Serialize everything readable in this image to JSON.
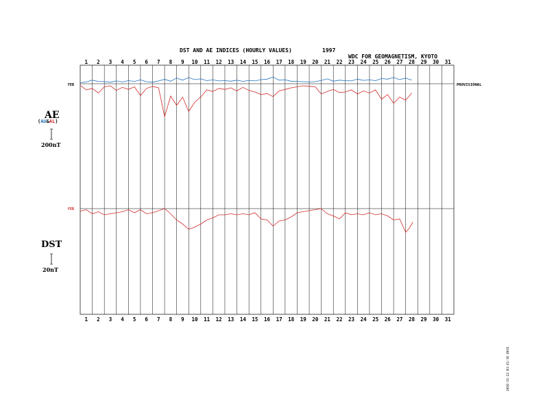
{
  "title": "DST AND AE INDICES (HOURLY VALUES)",
  "year": "1997",
  "institution": "WDC FOR GEOMAGNETISM, KYOTO",
  "status": "PROVISIONAL",
  "month_label": "FEB",
  "footer_stamp": "2010-11-22  03:41:36  0031",
  "colors": {
    "au": "#1f6fbf",
    "al": "#d42a2a",
    "dst": "#d42a2a",
    "grid": "#000000"
  },
  "ae_panel": {
    "label": "AE",
    "legend_open": "(",
    "legend_au": "AU",
    "legend_amp": "&",
    "legend_al": "AL",
    "legend_close": ")",
    "scale_label": "200nT"
  },
  "dst_panel": {
    "label": "DST",
    "scale_label": "20nT"
  },
  "chart_data": [
    {
      "type": "line",
      "name": "AE",
      "x_unit": "day of month",
      "x_ticks": [
        "1",
        "2",
        "3",
        "4",
        "5",
        "6",
        "7",
        "8",
        "9",
        "10",
        "11",
        "12",
        "13",
        "14",
        "15",
        "16",
        "17",
        "18",
        "19",
        "20",
        "21",
        "22",
        "23",
        "24",
        "25",
        "26",
        "27",
        "28",
        "29",
        "30",
        "31"
      ],
      "xlim": [
        1,
        32
      ],
      "y_unit": "nT",
      "scale_bar_nT": 200,
      "series": [
        {
          "name": "AU",
          "color": "#1f6fbf",
          "x": [
            1,
            1.5,
            2,
            2.5,
            3,
            3.5,
            4,
            4.5,
            5,
            5.5,
            6,
            6.5,
            7,
            7.5,
            8,
            8.5,
            9,
            9.5,
            10,
            10.5,
            11,
            11.5,
            12,
            12.5,
            13,
            13.5,
            14,
            14.5,
            15,
            15.5,
            16,
            16.5,
            17,
            17.5,
            18,
            18.5,
            19,
            19.5,
            20,
            20.5,
            21,
            21.5,
            22,
            22.5,
            23,
            23.5,
            24,
            24.5,
            25,
            25.5,
            26,
            26.5,
            27,
            27.5,
            28,
            28.5
          ],
          "values": [
            20,
            35,
            70,
            45,
            40,
            30,
            55,
            35,
            60,
            45,
            75,
            40,
            30,
            55,
            85,
            50,
            110,
            70,
            120,
            80,
            95,
            60,
            75,
            55,
            60,
            50,
            70,
            45,
            65,
            55,
            80,
            90,
            130,
            70,
            75,
            50,
            45,
            40,
            35,
            40,
            65,
            95,
            50,
            70,
            60,
            55,
            90,
            65,
            75,
            60,
            100,
            90,
            120,
            80,
            110,
            70
          ]
        },
        {
          "name": "AL",
          "color": "#d42a2a",
          "x": [
            1,
            1.5,
            2,
            2.5,
            3,
            3.5,
            4,
            4.5,
            5,
            5.5,
            6,
            6.5,
            7,
            7.5,
            8,
            8.5,
            9,
            9.5,
            10,
            10.5,
            11,
            11.5,
            12,
            12.5,
            13,
            13.5,
            14,
            14.5,
            15,
            15.5,
            16,
            16.5,
            17,
            17.5,
            18,
            18.5,
            19,
            19.5,
            20,
            20.5,
            21,
            21.5,
            22,
            22.5,
            23,
            23.5,
            24,
            24.5,
            25,
            25.5,
            26,
            26.5,
            27,
            27.5,
            28,
            28.5
          ],
          "values": [
            -30,
            -120,
            -90,
            -180,
            -60,
            -40,
            -130,
            -70,
            -110,
            -60,
            -230,
            -90,
            -50,
            -80,
            -640,
            -240,
            -420,
            -260,
            -540,
            -360,
            -260,
            -120,
            -150,
            -90,
            -110,
            -80,
            -140,
            -70,
            -130,
            -160,
            -210,
            -190,
            -250,
            -140,
            -110,
            -80,
            -60,
            -40,
            -50,
            -60,
            -200,
            -150,
            -110,
            -170,
            -160,
            -120,
            -200,
            -140,
            -180,
            -120,
            -300,
            -210,
            -380,
            -260,
            -320,
            -180
          ]
        }
      ]
    },
    {
      "type": "line",
      "name": "DST",
      "x_unit": "day of month",
      "x_ticks": [
        "1",
        "2",
        "3",
        "4",
        "5",
        "6",
        "7",
        "8",
        "9",
        "10",
        "11",
        "12",
        "13",
        "14",
        "15",
        "16",
        "17",
        "18",
        "19",
        "20",
        "21",
        "22",
        "23",
        "24",
        "25",
        "26",
        "27",
        "28",
        "29",
        "30",
        "31"
      ],
      "xlim": [
        1,
        32
      ],
      "y_unit": "nT",
      "scale_bar_nT": 20,
      "series": [
        {
          "name": "DST",
          "color": "#d42a2a",
          "x": [
            1,
            1.5,
            2,
            2.5,
            3,
            3.5,
            4,
            4.5,
            5,
            5.5,
            6,
            6.5,
            7,
            7.5,
            8,
            8.5,
            9,
            9.5,
            10,
            10.5,
            11,
            11.5,
            12,
            12.5,
            13,
            13.5,
            14,
            14.5,
            15,
            15.5,
            16,
            16.5,
            17,
            17.5,
            18,
            18.5,
            19,
            19.5,
            20,
            20.5,
            21,
            21.5,
            22,
            22.5,
            23,
            23.5,
            24,
            24.5,
            25,
            25.5,
            26,
            26.5,
            27,
            27.5,
            28,
            28.3,
            28.6
          ],
          "values": [
            -5,
            -2,
            -10,
            -6,
            -12,
            -10,
            -8,
            -6,
            -2,
            -8,
            -2,
            -10,
            -8,
            -4,
            0,
            -10,
            -22,
            -30,
            -40,
            -36,
            -30,
            -22,
            -18,
            -12,
            -12,
            -10,
            -12,
            -10,
            -12,
            -8,
            -20,
            -22,
            -34,
            -24,
            -22,
            -16,
            -8,
            -6,
            -4,
            -2,
            0,
            -10,
            -14,
            -20,
            -8,
            -12,
            -10,
            -12,
            -8,
            -12,
            -10,
            -14,
            -22,
            -20,
            -46,
            -38,
            -26
          ]
        }
      ]
    }
  ]
}
